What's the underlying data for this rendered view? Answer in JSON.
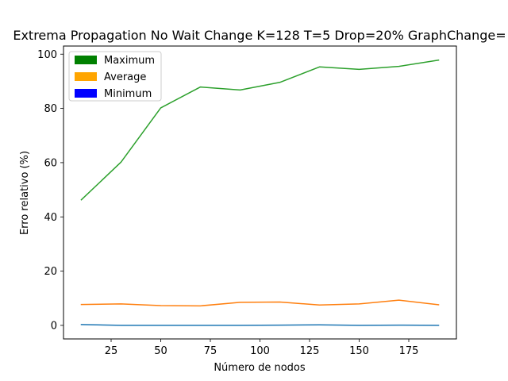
{
  "chart_data": {
    "type": "line",
    "title": "Extrema Propagation No Wait Change K=128 T=5 Drop=20% GraphChange=",
    "xlabel": "Número de nodos",
    "ylabel": "Erro relativo (%)",
    "xlim": [
      1,
      199
    ],
    "ylim": [
      -5,
      103
    ],
    "xticks": [
      25,
      50,
      75,
      100,
      125,
      150,
      175
    ],
    "yticks": [
      0,
      20,
      40,
      60,
      80,
      100
    ],
    "grid": false,
    "legend_position": "top-left",
    "legend": [
      {
        "label": "Maximum",
        "color": "#008000"
      },
      {
        "label": "Average",
        "color": "#ffa500"
      },
      {
        "label": "Minimum",
        "color": "#0000ff"
      }
    ],
    "x": [
      10,
      30,
      50,
      70,
      90,
      110,
      130,
      150,
      170,
      190
    ],
    "series": [
      {
        "color": "#2ca02c",
        "values": [
          46.3,
          60.2,
          80.2,
          87.9,
          86.8,
          89.6,
          95.3,
          94.4,
          95.5,
          97.8
        ]
      },
      {
        "color": "#ff7f0e",
        "values": [
          7.7,
          7.9,
          7.3,
          7.2,
          8.5,
          8.6,
          7.5,
          7.9,
          9.3,
          7.6
        ]
      },
      {
        "color": "#1f77b4",
        "values": [
          0.3,
          0.0,
          0.0,
          0.0,
          0.0,
          0.1,
          0.2,
          0.0,
          0.1,
          0.0
        ]
      }
    ]
  }
}
